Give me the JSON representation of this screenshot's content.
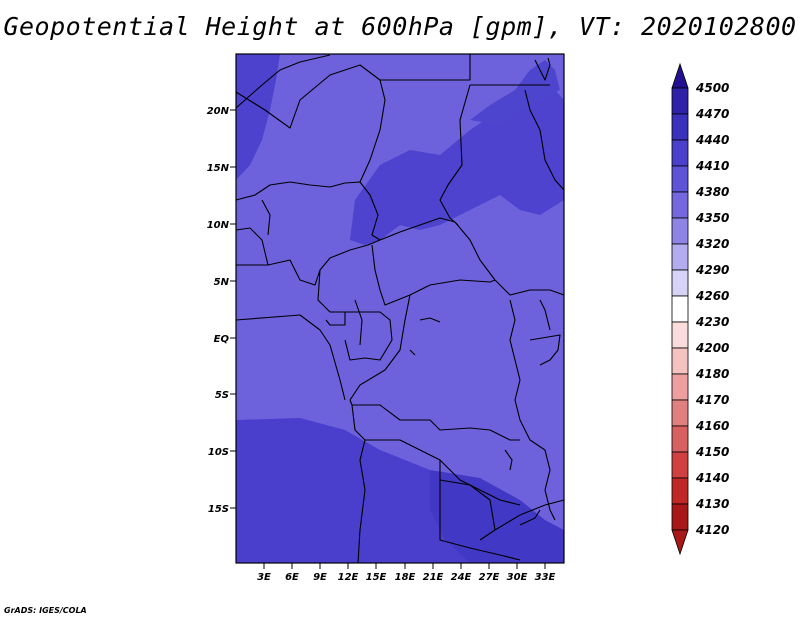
{
  "title": "Geopotential Height at 600hPa [gpm], VT: 2020102800",
  "credit": "GrADS: IGES/COLA",
  "map": {
    "lat_ticks": [
      "20N",
      "15N",
      "10N",
      "5N",
      "EQ",
      "5S",
      "10S",
      "15S"
    ],
    "lon_ticks": [
      "3E",
      "6E",
      "9E",
      "12E",
      "15E",
      "18E",
      "21E",
      "24E",
      "27E",
      "30E",
      "33E"
    ]
  },
  "colorbar": {
    "levels": [
      "4500",
      "4470",
      "4440",
      "4410",
      "4380",
      "4350",
      "4320",
      "4290",
      "4260",
      "4230",
      "4200",
      "4180",
      "4170",
      "4160",
      "4150",
      "4140",
      "4130",
      "4120"
    ],
    "colors": [
      "#24118f",
      "#2d22a8",
      "#3a31bd",
      "#4a40cc",
      "#5e54d7",
      "#7368dd",
      "#8e84e6",
      "#b3adef",
      "#d6d3f7",
      "#ffffff",
      "#fbdcdc",
      "#f5c2c2",
      "#eea0a0",
      "#e28080",
      "#d96060",
      "#d04040",
      "#c02828",
      "#a81818"
    ]
  }
}
